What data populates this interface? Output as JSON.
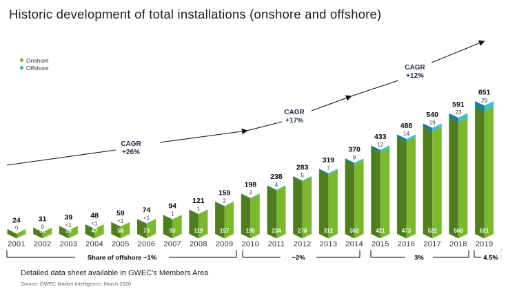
{
  "title": "Historic development of total installations (onshore and offshore)",
  "legend": [
    {
      "label": "Onshore",
      "color": "#74b52e"
    },
    {
      "label": "Offshore",
      "color": "#35abc0"
    }
  ],
  "footer": {
    "note": "Detailed data sheet available in GWEC's Members Area",
    "source": "Source: GWEC Market Intelligence, March 2020"
  },
  "chart_data": {
    "type": "bar",
    "stacked": true,
    "unit": "GW",
    "title": "Historic development of total installations (onshore and offshore)",
    "categories": [
      2001,
      2002,
      2003,
      2004,
      2005,
      2006,
      2007,
      2008,
      2009,
      2010,
      2011,
      2012,
      2013,
      2014,
      2015,
      2016,
      2017,
      2018,
      2019
    ],
    "totals": [
      24,
      31,
      39,
      48,
      59,
      74,
      94,
      121,
      159,
      198,
      238,
      283,
      319,
      370,
      433,
      488,
      540,
      591,
      651
    ],
    "series": [
      {
        "name": "Onshore",
        "color_dark": "#507d1f",
        "color_light": "#7cb82f",
        "values": [
          24,
          31,
          39,
          47,
          58,
          73,
          93,
          119,
          157,
          195,
          234,
          278,
          312,
          362,
          421,
          473,
          522,
          568,
          621
        ]
      },
      {
        "name": "Offshore",
        "color_dark": "#187f8e",
        "color_light": "#44bcca",
        "values": [
          0,
          0,
          0.5,
          0.5,
          0.5,
          0.5,
          1,
          1,
          2,
          3,
          4,
          5,
          7,
          8,
          12,
          14,
          19,
          23,
          29
        ],
        "labels": [
          "0",
          "0",
          "<1",
          "<1",
          "<1",
          "<1",
          "1",
          "1",
          "2",
          "3",
          "4",
          "5",
          "7",
          "8",
          "12",
          "14",
          "19",
          "23",
          "29"
        ]
      }
    ],
    "annotations": {
      "cagr": [
        {
          "name": "CAGR",
          "value": "+26%"
        },
        {
          "name": "CAGR",
          "value": "+17%"
        },
        {
          "name": "CAGR",
          "value": "+12%"
        }
      ],
      "brackets": [
        "Share of offshore ~1%",
        "~2%",
        "3%",
        "4.5%"
      ]
    },
    "ylim": [
      0,
      700
    ],
    "grid": false,
    "legend_position": "top-left"
  }
}
